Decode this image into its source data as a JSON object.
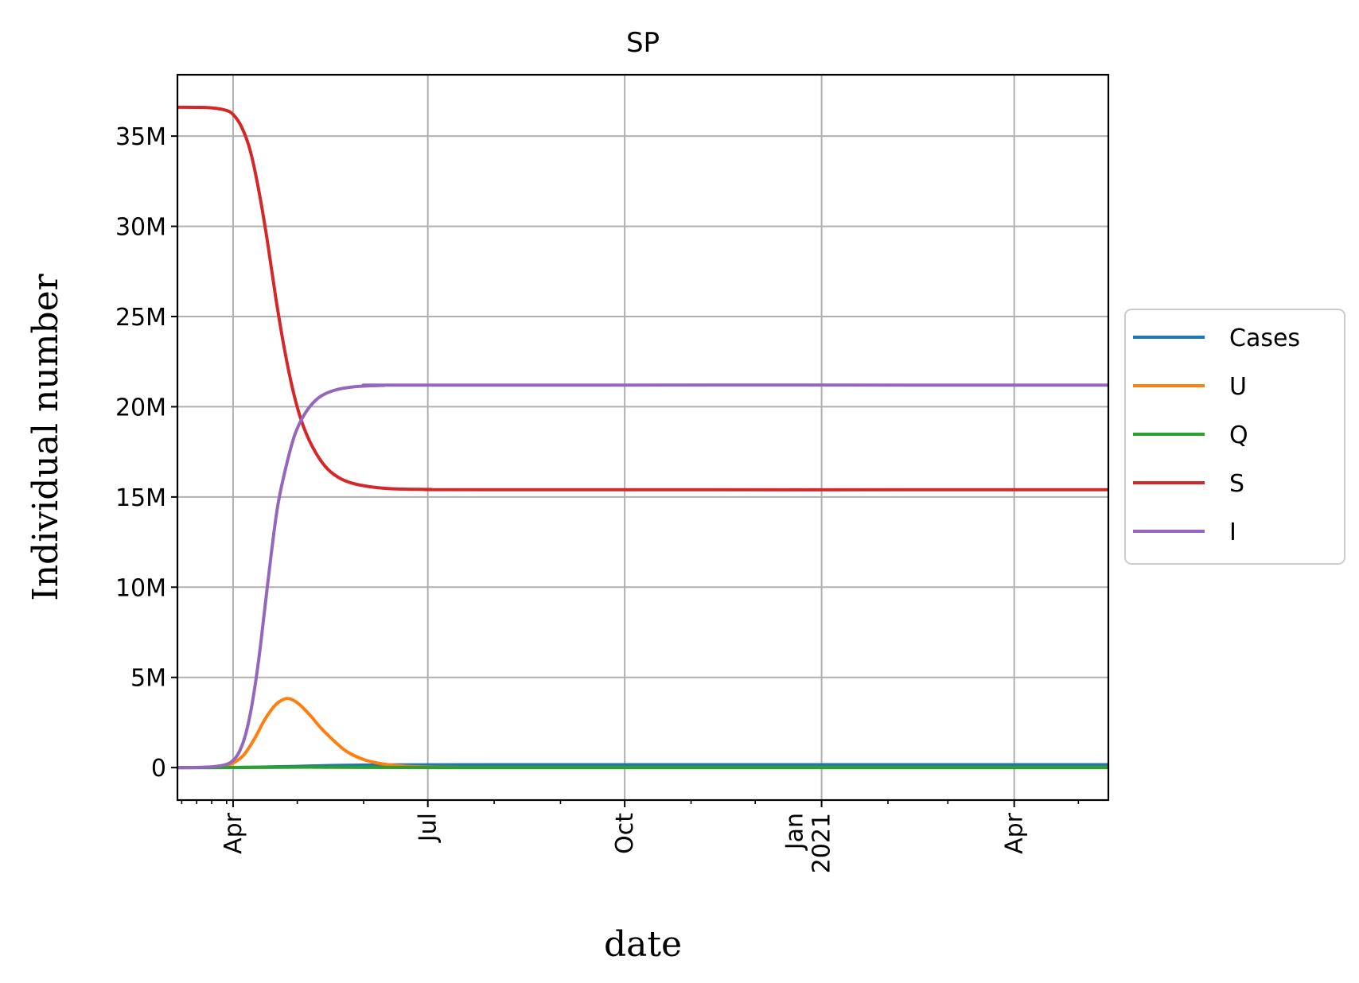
{
  "chart_data": {
    "type": "line",
    "title": "SP",
    "xlabel": "date",
    "ylabel": "Individual number",
    "x_range": [
      "2020-03-06",
      "2021-05-15"
    ],
    "ylim": [
      -1800000,
      38400000
    ],
    "y_ticks": [
      {
        "value": 0,
        "label": "0"
      },
      {
        "value": 5000000,
        "label": "5M"
      },
      {
        "value": 10000000,
        "label": "10M"
      },
      {
        "value": 15000000,
        "label": "15M"
      },
      {
        "value": 20000000,
        "label": "20M"
      },
      {
        "value": 25000000,
        "label": "25M"
      },
      {
        "value": 30000000,
        "label": "30M"
      },
      {
        "value": 35000000,
        "label": "35M"
      }
    ],
    "x_major_ticks": [
      {
        "date": "2020-04-01",
        "label": "Apr"
      },
      {
        "date": "2020-07-01",
        "label": "Jul"
      },
      {
        "date": "2020-10-01",
        "label": "Oct"
      },
      {
        "date": "2021-01-01",
        "label": "Jan\n2021"
      },
      {
        "date": "2021-04-01",
        "label": "Apr"
      }
    ],
    "x_minor_ticks": [
      "2020-03-08",
      "2020-03-15",
      "2020-03-22",
      "2020-03-29",
      "2020-05-01",
      "2020-06-01",
      "2020-08-01",
      "2020-09-01",
      "2020-11-01",
      "2020-12-01",
      "2021-02-01",
      "2021-03-01",
      "2021-05-01"
    ],
    "grid": true,
    "legend_position": "center-right-outside",
    "series": [
      {
        "name": "Cases",
        "color": "#1f77b4",
        "points": [
          [
            "2020-03-06",
            0
          ],
          [
            "2020-03-20",
            2000
          ],
          [
            "2020-04-01",
            8000
          ],
          [
            "2020-04-15",
            30000
          ],
          [
            "2020-05-01",
            70000
          ],
          [
            "2020-05-15",
            110000
          ],
          [
            "2020-06-01",
            140000
          ],
          [
            "2020-06-15",
            150000
          ],
          [
            "2020-07-01",
            155000
          ],
          [
            "2020-08-01",
            160000
          ],
          [
            "2020-10-01",
            160000
          ],
          [
            "2021-01-01",
            160000
          ],
          [
            "2021-05-15",
            160000
          ]
        ]
      },
      {
        "name": "U",
        "color": "#ff7f0e",
        "points": [
          [
            "2020-03-06",
            0
          ],
          [
            "2020-03-20",
            20000
          ],
          [
            "2020-03-28",
            100000
          ],
          [
            "2020-04-01",
            250000
          ],
          [
            "2020-04-06",
            700000
          ],
          [
            "2020-04-11",
            1600000
          ],
          [
            "2020-04-16",
            2700000
          ],
          [
            "2020-04-21",
            3500000
          ],
          [
            "2020-04-25",
            3800000
          ],
          [
            "2020-04-28",
            3800000
          ],
          [
            "2020-05-02",
            3500000
          ],
          [
            "2020-05-07",
            2900000
          ],
          [
            "2020-05-12",
            2200000
          ],
          [
            "2020-05-18",
            1500000
          ],
          [
            "2020-05-24",
            900000
          ],
          [
            "2020-06-01",
            450000
          ],
          [
            "2020-06-10",
            200000
          ],
          [
            "2020-06-20",
            80000
          ],
          [
            "2020-07-01",
            30000
          ],
          [
            "2020-07-15",
            10000
          ],
          [
            "2020-08-01",
            0
          ],
          [
            "2021-05-15",
            0
          ]
        ]
      },
      {
        "name": "Q",
        "color": "#2ca02c",
        "points": [
          [
            "2020-03-06",
            0
          ],
          [
            "2020-04-01",
            5000
          ],
          [
            "2020-04-15",
            15000
          ],
          [
            "2020-05-01",
            25000
          ],
          [
            "2020-05-15",
            20000
          ],
          [
            "2020-06-01",
            12000
          ],
          [
            "2020-07-01",
            4000
          ],
          [
            "2020-08-01",
            0
          ],
          [
            "2021-05-15",
            0
          ]
        ]
      },
      {
        "name": "S",
        "color": "#d62728",
        "points": [
          [
            "2020-03-06",
            36600000
          ],
          [
            "2020-03-20",
            36580000
          ],
          [
            "2020-03-28",
            36450000
          ],
          [
            "2020-04-01",
            36200000
          ],
          [
            "2020-04-05",
            35500000
          ],
          [
            "2020-04-09",
            34200000
          ],
          [
            "2020-04-13",
            32000000
          ],
          [
            "2020-04-17",
            29200000
          ],
          [
            "2020-04-21",
            26000000
          ],
          [
            "2020-04-25",
            23200000
          ],
          [
            "2020-04-29",
            20900000
          ],
          [
            "2020-05-03",
            19200000
          ],
          [
            "2020-05-08",
            17800000
          ],
          [
            "2020-05-14",
            16700000
          ],
          [
            "2020-05-20",
            16100000
          ],
          [
            "2020-05-27",
            15750000
          ],
          [
            "2020-06-05",
            15550000
          ],
          [
            "2020-06-15",
            15450000
          ],
          [
            "2020-07-01",
            15420000
          ],
          [
            "2020-08-01",
            15400000
          ],
          [
            "2021-05-15",
            15400000
          ]
        ]
      },
      {
        "name": "I",
        "color": "#9467bd",
        "points": [
          [
            "2020-03-06",
            0
          ],
          [
            "2020-03-20",
            30000
          ],
          [
            "2020-03-28",
            150000
          ],
          [
            "2020-04-01",
            400000
          ],
          [
            "2020-04-04",
            900000
          ],
          [
            "2020-04-07",
            1900000
          ],
          [
            "2020-04-10",
            3600000
          ],
          [
            "2020-04-13",
            6000000
          ],
          [
            "2020-04-16",
            9000000
          ],
          [
            "2020-04-19",
            12000000
          ],
          [
            "2020-04-22",
            14600000
          ],
          [
            "2020-04-26",
            16800000
          ],
          [
            "2020-04-30",
            18500000
          ],
          [
            "2020-05-05",
            19700000
          ],
          [
            "2020-05-11",
            20500000
          ],
          [
            "2020-05-18",
            20900000
          ],
          [
            "2020-05-27",
            21100000
          ],
          [
            "2020-06-10",
            21180000
          ],
          [
            "2020-07-01",
            21200000
          ],
          [
            "2021-05-15",
            21200000
          ]
        ]
      }
    ]
  }
}
